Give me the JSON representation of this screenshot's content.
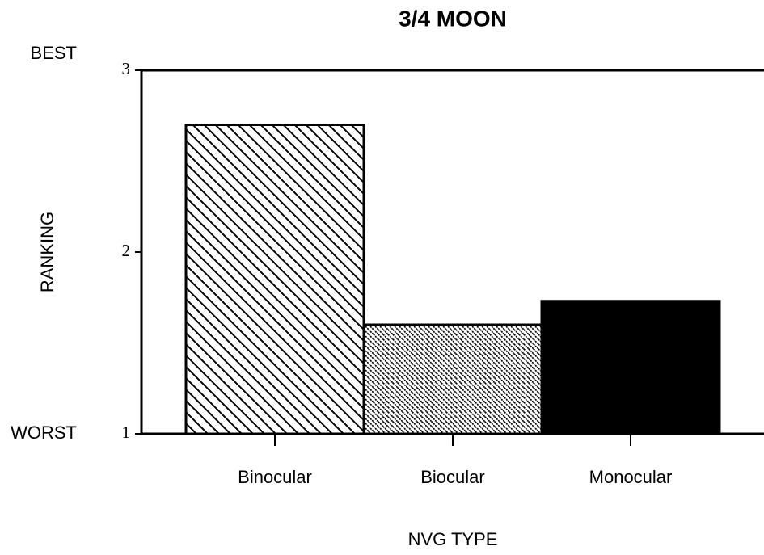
{
  "chart_data": {
    "type": "bar",
    "title": "3/4 MOON",
    "x_label": "NVG TYPE",
    "y_label": "RANKING",
    "annotations": [
      "BEST",
      "WORST"
    ],
    "categories": [
      "Binocular",
      "Biocular",
      "Monocular"
    ],
    "values": [
      2.7,
      1.6,
      1.73
    ],
    "ylim": [
      1,
      3
    ],
    "yticks": [
      1,
      2,
      3
    ]
  }
}
